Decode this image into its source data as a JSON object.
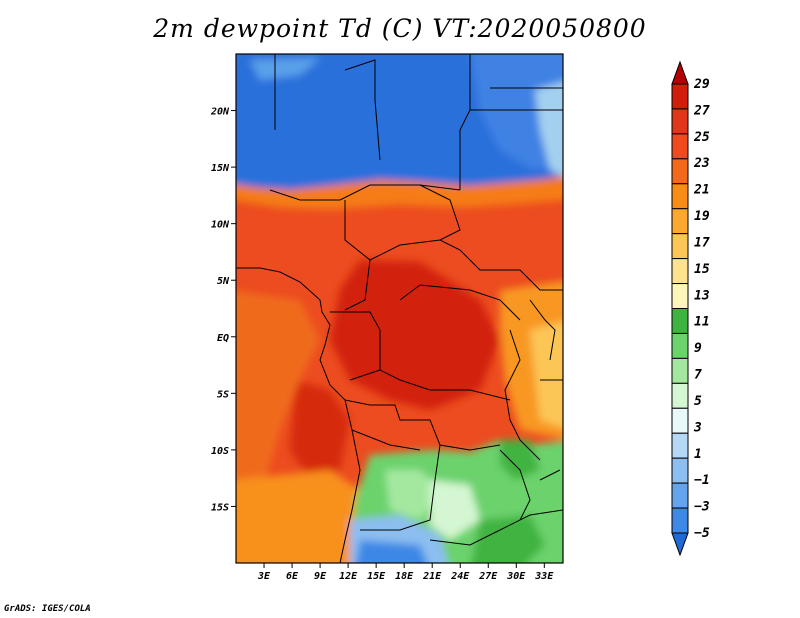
{
  "title": "2m dewpoint Td (C) VT:2020050800",
  "credit": "GrADS: IGES/COLA",
  "map": {
    "lon_range": [
      0,
      35
    ],
    "lat_range": [
      -20,
      25
    ],
    "lat_ticks": [
      {
        "value": 20,
        "label": "20N"
      },
      {
        "value": 15,
        "label": "15N"
      },
      {
        "value": 10,
        "label": "10N"
      },
      {
        "value": 5,
        "label": "5N"
      },
      {
        "value": 0,
        "label": "EQ"
      },
      {
        "value": -5,
        "label": "5S"
      },
      {
        "value": -10,
        "label": "10S"
      },
      {
        "value": -15,
        "label": "15S"
      }
    ],
    "lon_ticks": [
      {
        "value": 3,
        "label": "3E"
      },
      {
        "value": 6,
        "label": "6E"
      },
      {
        "value": 9,
        "label": "9E"
      },
      {
        "value": 12,
        "label": "12E"
      },
      {
        "value": 15,
        "label": "15E"
      },
      {
        "value": 18,
        "label": "18E"
      },
      {
        "value": 21,
        "label": "21E"
      },
      {
        "value": 24,
        "label": "24E"
      },
      {
        "value": 27,
        "label": "27E"
      },
      {
        "value": 30,
        "label": "30E"
      },
      {
        "value": 33,
        "label": "33E"
      }
    ]
  },
  "colorbar": {
    "labels": [
      "29",
      "27",
      "25",
      "23",
      "21",
      "19",
      "17",
      "15",
      "13",
      "11",
      "9",
      "7",
      "5",
      "3",
      "1",
      "−1",
      "−3",
      "−5"
    ],
    "colors_top_to_bottom": [
      "#b40000",
      "#d01e0a",
      "#e0361a",
      "#ee4a1e",
      "#f56a1a",
      "#f88c14",
      "#faa82e",
      "#fcc656",
      "#fde38e",
      "#fdf6bb",
      "#3fb33f",
      "#6cd26c",
      "#a4e8a0",
      "#d4f6d2",
      "#e8f8fb",
      "#b4d8f5",
      "#8cbef0",
      "#64a4ec",
      "#3e88e6",
      "#1f6ad6"
    ]
  }
}
